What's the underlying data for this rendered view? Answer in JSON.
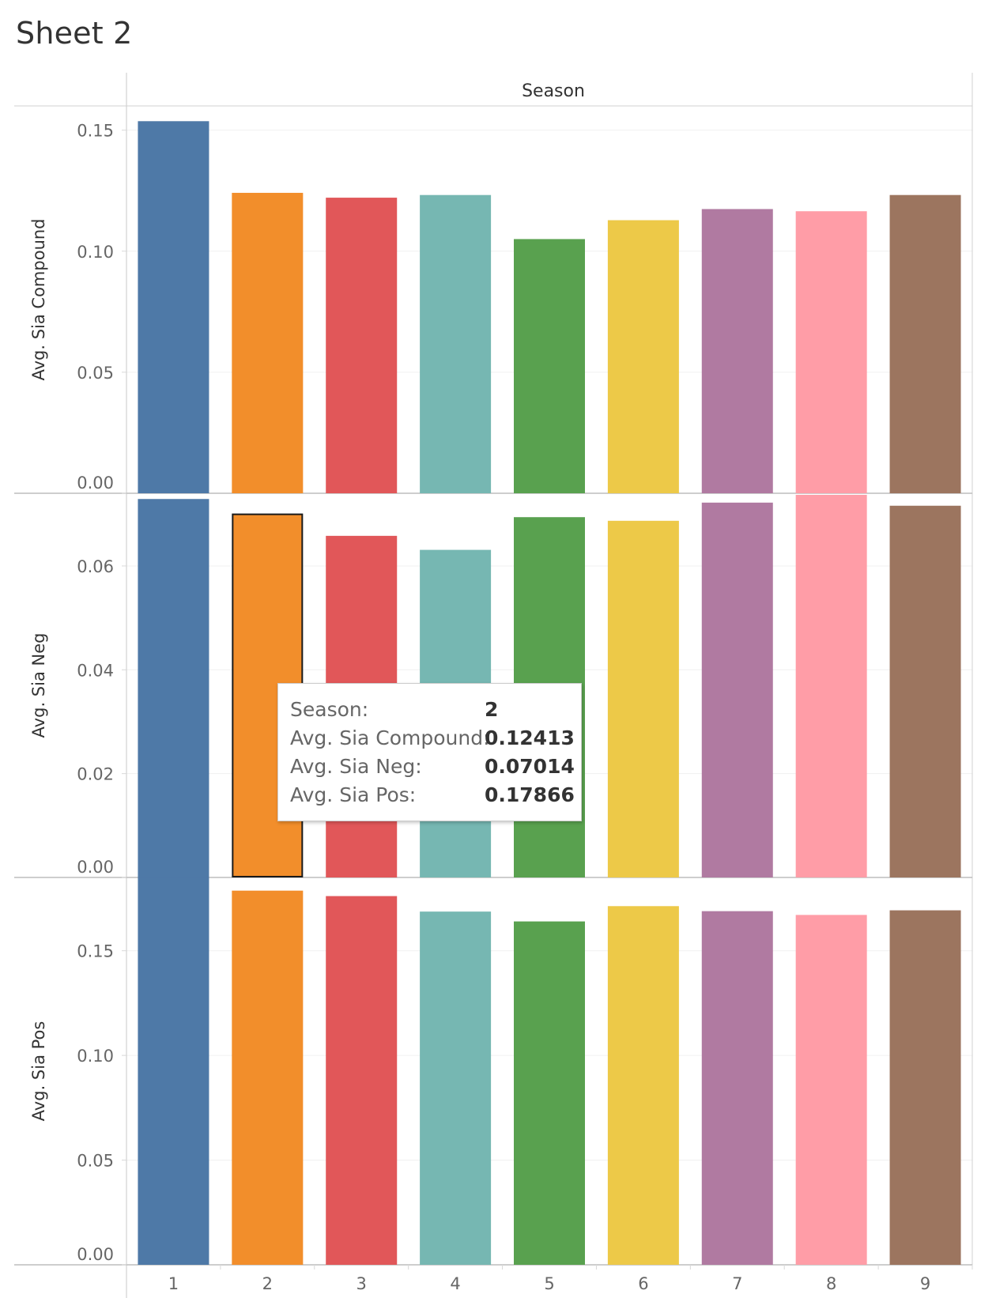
{
  "page": {
    "title": "Sheet 2"
  },
  "chart_data": {
    "type": "bar",
    "column_header": "Season",
    "categories": [
      "1",
      "2",
      "3",
      "4",
      "5",
      "6",
      "7",
      "8",
      "9"
    ],
    "colors": [
      "#4e79a7",
      "#f28e2b",
      "#e15759",
      "#76b7b2",
      "#59a14f",
      "#edc948",
      "#b07aa1",
      "#ff9da7",
      "#9c755f"
    ],
    "panels": [
      {
        "ylabel": "Avg. Sia Compound",
        "ylim": [
          0,
          0.16
        ],
        "yticks": [
          0.0,
          0.05,
          0.1,
          0.15
        ],
        "ytick_labels": [
          "0.00",
          "0.05",
          "0.10",
          "0.15"
        ],
        "values": [
          0.1537,
          0.1241,
          0.1221,
          0.1232,
          0.105,
          0.1128,
          0.1174,
          0.1165,
          0.1232
        ]
      },
      {
        "ylabel": "Avg. Sia Neg",
        "ylim": [
          0,
          0.074
        ],
        "yticks": [
          0.0,
          0.02,
          0.04,
          0.06
        ],
        "ytick_labels": [
          "0.00",
          "0.02",
          "0.04",
          "0.06"
        ],
        "values": [
          0.0729,
          0.0701,
          0.0658,
          0.0631,
          0.0694,
          0.0687,
          0.0722,
          0.0737,
          0.0716
        ],
        "highlighted_index": 1
      },
      {
        "ylabel": "Avg. Sia Pos",
        "ylim": [
          0,
          0.185
        ],
        "yticks": [
          0.0,
          0.05,
          0.1,
          0.15
        ],
        "ytick_labels": [
          "0.00",
          "0.05",
          "0.10",
          "0.15"
        ],
        "values": [
          0.1851,
          0.1787,
          0.1761,
          0.1687,
          0.164,
          0.1713,
          0.1689,
          0.1671,
          0.1693
        ]
      }
    ],
    "grid": true,
    "legend": "none"
  },
  "tooltip": {
    "rows": [
      {
        "label": "Season:",
        "value": "2"
      },
      {
        "label": "Avg. Sia Compound:",
        "value": "0.12413"
      },
      {
        "label": "Avg. Sia Neg:",
        "value": "0.07014"
      },
      {
        "label": "Avg. Sia Pos:",
        "value": "0.17866"
      }
    ]
  }
}
